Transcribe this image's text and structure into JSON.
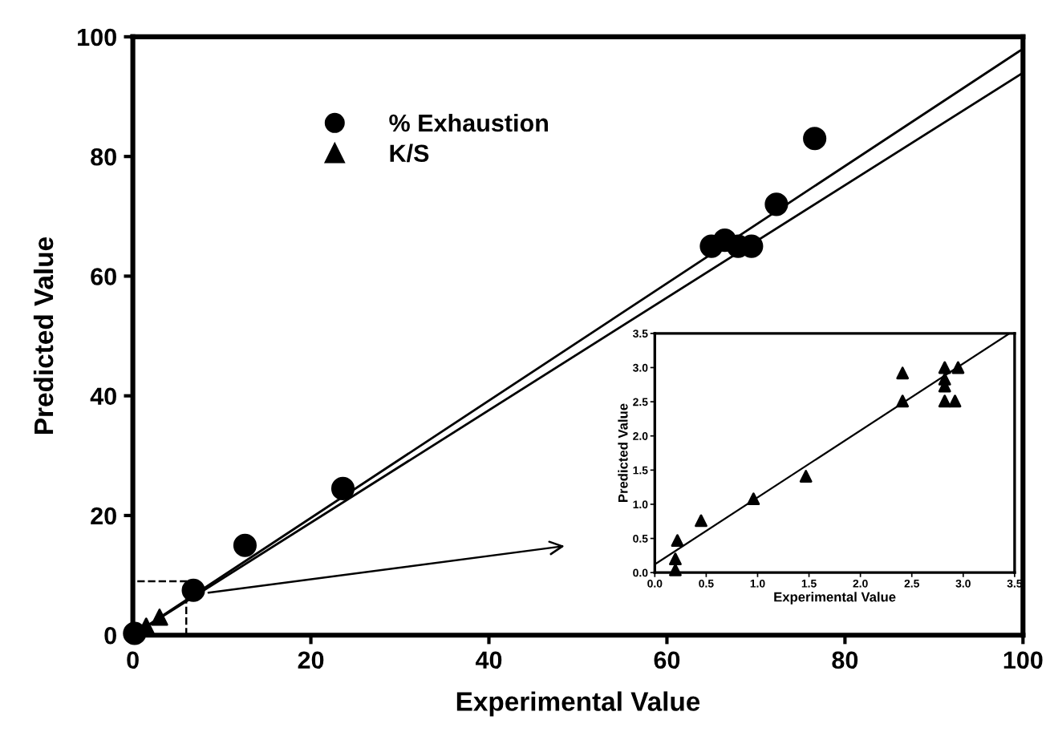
{
  "chart_data": [
    {
      "type": "scatter",
      "xlabel": "Experimental Value",
      "ylabel": "Predicted Value",
      "xlim": [
        0,
        100
      ],
      "ylim": [
        0,
        100
      ],
      "xticks": [
        0,
        20,
        40,
        60,
        80,
        100
      ],
      "yticks": [
        0,
        20,
        40,
        60,
        80,
        100
      ],
      "grid": false,
      "legend": "top left",
      "series": [
        {
          "name": "% Exhaustion",
          "color": "#000000",
          "marker": "circle",
          "x": [
            0.2,
            6.8,
            12.6,
            23.6,
            65,
            66.5,
            68,
            69.5,
            72.3,
            76.6
          ],
          "values": [
            0.3,
            7.5,
            15,
            24.5,
            65,
            66,
            65,
            65,
            72,
            83
          ]
        },
        {
          "name": "K/S",
          "color": "#000000",
          "marker": "triangle",
          "x": [
            1.5,
            3
          ],
          "values": [
            1.5,
            3
          ]
        },
        {
          "type": "line",
          "color": "#000000",
          "x": [
            0,
            100
          ],
          "values": [
            0,
            98
          ]
        },
        {
          "type": "line",
          "color": "#000000",
          "x": [
            0,
            100
          ],
          "values": [
            0,
            94
          ]
        }
      ]
    },
    {
      "type": "scatter",
      "xlabel": "Experimental Value",
      "ylabel": "Predicted Value",
      "xlim": [
        0,
        3.5
      ],
      "ylim": [
        0,
        3.5
      ],
      "xticks": [
        {
          "value": 0,
          "label": "0.0"
        },
        {
          "value": 0.5,
          "label": "0.5"
        },
        {
          "value": 1,
          "label": "1.0"
        },
        {
          "value": 1.5,
          "label": "1.5"
        },
        {
          "value": 2,
          "label": "2.0"
        },
        {
          "value": 2.5,
          "label": "2.5"
        },
        {
          "value": 3,
          "label": "3.0"
        },
        {
          "value": 3.5,
          "label": "3.5"
        }
      ],
      "yticks": [
        {
          "value": 0,
          "label": "0.0"
        },
        {
          "value": 0.5,
          "label": "0.5"
        },
        {
          "value": 1,
          "label": "1.0"
        },
        {
          "value": 1.5,
          "label": "1.5"
        },
        {
          "value": 2,
          "label": "2.0"
        },
        {
          "value": 2.5,
          "label": "2.5"
        },
        {
          "value": 3,
          "label": "3.0"
        },
        {
          "value": 3.5,
          "label": "3.5"
        }
      ],
      "grid": false,
      "series": [
        {
          "color": "#000000",
          "marker": "triangle",
          "x": [
            0.2,
            0.2,
            0.22,
            0.45,
            0.96,
            1.47,
            2.41,
            2.41,
            2.82,
            2.82,
            2.82,
            2.95,
            2.82,
            2.92
          ],
          "values": [
            0.04,
            0.2,
            0.47,
            0.76,
            1.08,
            1.41,
            2.92,
            2.51,
            3.0,
            2.83,
            2.73,
            3.0,
            2.51,
            2.51
          ]
        },
        {
          "type": "line",
          "color": "#000000",
          "x": [
            0,
            3.45
          ],
          "values": [
            0.12,
            3.5
          ]
        }
      ]
    }
  ]
}
